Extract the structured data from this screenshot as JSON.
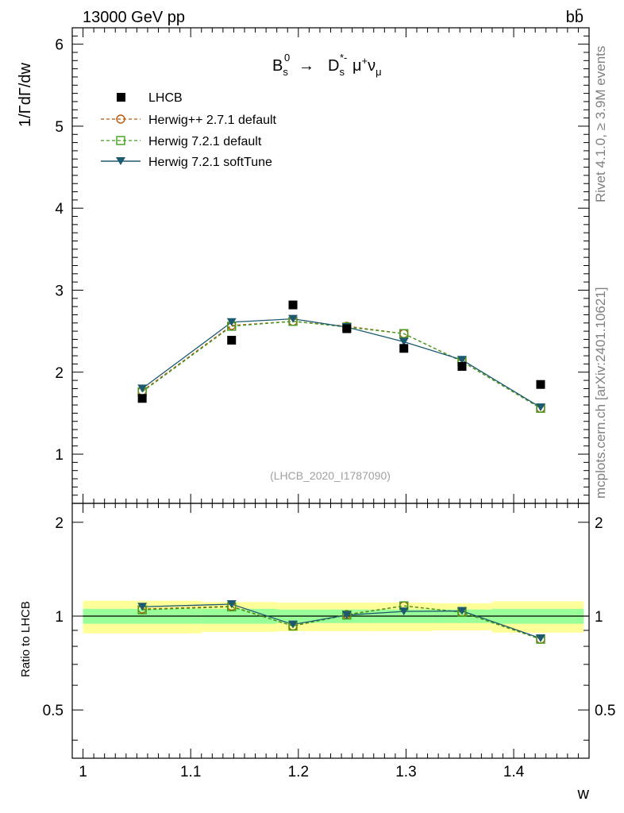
{
  "header": {
    "energy_label": "13000 GeV pp",
    "process_label": "bb̄"
  },
  "side_labels": {
    "rivet": "Rivet 4.1.0, ≥ 3.9M events",
    "mcplots": "mcplots.cern.ch [arXiv:2401.10621]"
  },
  "analysis_label": "(LHCB_2020_I1787090)",
  "chart_data": {
    "type": "scatter",
    "title": "B_s^0 → D_s^*- μ^+ ν_μ",
    "title_parts": {
      "b": "B",
      "b_sub": "s",
      "b_sup": "0",
      "arrow": "→",
      "d": "D",
      "d_sub": "s",
      "d_sup": "*-",
      "mu": "μ",
      "mu_sup": "+",
      "nu": "ν",
      "nu_sub": "μ"
    },
    "xlabel": "w",
    "ylabel": "1/ΓdΓ/dw",
    "ratio_ylabel": "Ratio to LHCB",
    "xlim": [
      0.99,
      1.47
    ],
    "ylim": [
      0.4,
      6.2
    ],
    "ratio_ylim": [
      0.35,
      2.3
    ],
    "ratio_scale": "log",
    "x_ticks": [
      "1",
      "1.1",
      "1.2",
      "1.3",
      "1.4"
    ],
    "y_ticks": [
      "1",
      "2",
      "3",
      "4",
      "5",
      "6"
    ],
    "ratio_ticks": [
      "0.5",
      "1",
      "2"
    ],
    "x_bins": [
      [
        1.0,
        1.11
      ],
      [
        1.11,
        1.18
      ],
      [
        1.18,
        1.22
      ],
      [
        1.22,
        1.27
      ],
      [
        1.27,
        1.325
      ],
      [
        1.325,
        1.38
      ],
      [
        1.38,
        1.465
      ]
    ],
    "x": [
      1.055,
      1.138,
      1.195,
      1.245,
      1.298,
      1.352,
      1.425
    ],
    "data": {
      "name": "LHCB",
      "values": [
        1.68,
        2.39,
        2.82,
        2.53,
        2.29,
        2.07,
        1.85
      ],
      "ratio_band_inner": [
        0.055,
        0.055,
        0.05,
        0.05,
        0.05,
        0.05,
        0.055
      ],
      "ratio_band_outer": [
        0.12,
        0.11,
        0.105,
        0.105,
        0.105,
        0.1,
        0.115
      ]
    },
    "series": [
      {
        "name": "Herwig++ 2.7.1 default",
        "color": "#b8580a",
        "marker": "open-circle",
        "dashed": true,
        "values": [
          1.77,
          2.57,
          2.62,
          2.56,
          2.47,
          2.13,
          1.56
        ]
      },
      {
        "name": "Herwig 7.2.1 default",
        "color": "#3f9c1c",
        "marker": "open-square",
        "dashed": true,
        "values": [
          1.76,
          2.56,
          2.62,
          2.55,
          2.47,
          2.13,
          1.56
        ]
      },
      {
        "name": "Herwig 7.2.1 softTune",
        "color": "#1d5a70",
        "marker": "filled-triangle-down",
        "dashed": false,
        "values": [
          1.8,
          2.61,
          2.65,
          2.55,
          2.37,
          2.15,
          1.57
        ]
      }
    ]
  },
  "colors": {
    "band_outer": "#ffff99",
    "band_inner": "#99ff99"
  }
}
